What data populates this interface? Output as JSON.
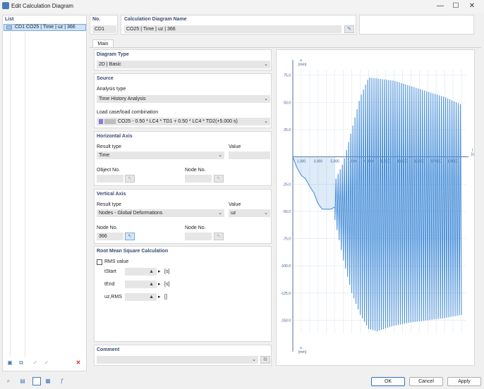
{
  "window": {
    "title": "Edit Calculation Diagram",
    "controls": [
      "—",
      "☐",
      "✕"
    ]
  },
  "list": {
    "header": "List",
    "items": [
      {
        "id": "CD1",
        "name": "CO25 | Time | uz | 366"
      }
    ]
  },
  "general": {
    "no_label": "No.",
    "no_value": "CD1",
    "name_label": "Calculation Diagram Name",
    "name_value": "CO25 | Time | uz | 366"
  },
  "tabs": [
    "Main"
  ],
  "diagram_type": {
    "header": "Diagram Type",
    "value": "2D | Basic"
  },
  "source": {
    "header": "Source",
    "analysis_label": "Analysis type",
    "analysis_value": "Time History Analysis",
    "loadcase_label": "Load case/load combination",
    "loadcase_value": "CO25 - 0.50 * LC4 * TD1 + 0.50 * LC4 * TD2(+5.000 s)"
  },
  "horizontal_axis": {
    "header": "Horizontal Axis",
    "result_type_label": "Result type",
    "result_type_value": "Time",
    "value_label": "Value",
    "object_label": "Object No.",
    "node_label": "Node No."
  },
  "vertical_axis": {
    "header": "Vertical Axis",
    "result_type_label": "Result type",
    "result_type_value": "Nodes - Global Deformations",
    "value_label": "Value",
    "value_value": "uz",
    "node_no_label": "Node No.",
    "node_no_value": "366",
    "node_label2": "Node No."
  },
  "rms": {
    "header": "Root Mean Square Calculation",
    "checkbox_label": "RMS value",
    "tstart_label": "tStart",
    "tend_label": "tEnd",
    "uzrms_label": "uz,RMS",
    "unit_s": "[s]",
    "unit_mm": "[]"
  },
  "comment": {
    "header": "Comment"
  },
  "buttons": {
    "ok": "OK",
    "cancel": "Cancel",
    "apply": "Apply"
  },
  "chart_data": {
    "type": "line",
    "x_axis_label": "t",
    "x_axis_unit": "[s]",
    "y_axis_label": "u",
    "y_axis_unit": "[mm]",
    "y_axis_label_bottom": "u",
    "y_axis_unit_bottom": "[mm]",
    "xlim": [
      0,
      20.5
    ],
    "ylim": [
      -162,
      80
    ],
    "y_ticks": [
      75.0,
      50.0,
      25.0,
      -25.0,
      -50.0,
      -75.0,
      -100.0,
      -125.0,
      -150.0
    ],
    "y_tick_labels": [
      "75.0",
      "50.0",
      "25.0",
      "-25.0",
      "-50.0",
      "-75.0",
      "-100.0",
      "-125.0",
      "-150.0"
    ],
    "x_ticks": [
      1.0,
      3.0,
      5.0,
      7.0,
      9.0,
      11.0,
      13.0,
      15.0,
      17.0,
      19.0
    ],
    "x_tick_labels": [
      "1.000",
      "3.000",
      "5.000",
      "7.000",
      "9.000",
      "11.000",
      "13.000",
      "15.000",
      "17.000",
      "19.000"
    ],
    "grid": true,
    "series": [
      {
        "color": "#4a90d9",
        "forced": {
          "t_end": 5.0,
          "points": [
            [
              0,
              0
            ],
            [
              0.5,
              -10
            ],
            [
              1.0,
              -17
            ],
            [
              1.5,
              -20
            ],
            [
              2.0,
              -27
            ],
            [
              2.5,
              -33
            ],
            [
              3.0,
              -43
            ],
            [
              3.5,
              -48
            ],
            [
              4.0,
              -48
            ],
            [
              4.5,
              -48
            ],
            [
              5.0,
              -46
            ]
          ]
        },
        "free": {
          "t_start": 5.0,
          "t_end": 20.0,
          "period": 0.25,
          "envelope": [
            [
              5.0,
              -22,
              -58
            ],
            [
              6.0,
              -5,
              -95
            ],
            [
              7.0,
              25,
              -125
            ],
            [
              8.0,
              55,
              -145
            ],
            [
              9.0,
              73,
              -158
            ],
            [
              10.0,
              72,
              -160
            ],
            [
              12.0,
              70,
              -155
            ],
            [
              14.0,
              65,
              -152
            ],
            [
              16.0,
              60,
              -150
            ],
            [
              18.0,
              55,
              -148
            ],
            [
              20.0,
              48,
              -145
            ]
          ]
        }
      }
    ]
  }
}
